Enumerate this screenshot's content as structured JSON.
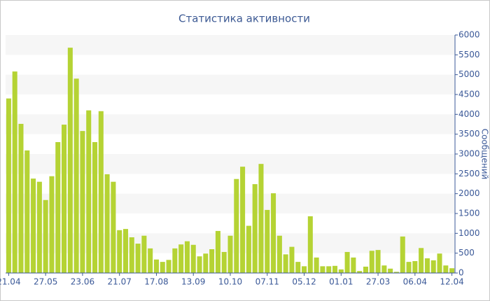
{
  "chart_data": {
    "type": "bar",
    "title": "Статистика активности",
    "y_label": "Сообщений",
    "categories": [
      "21.04",
      null,
      null,
      null,
      null,
      null,
      "27.05",
      null,
      null,
      null,
      null,
      null,
      "23.06",
      null,
      null,
      null,
      null,
      null,
      "21.07",
      null,
      null,
      null,
      null,
      null,
      "17.08",
      null,
      null,
      null,
      null,
      null,
      "13.09",
      null,
      null,
      null,
      null,
      null,
      "10.10",
      null,
      null,
      null,
      null,
      null,
      "07.11",
      null,
      null,
      null,
      null,
      null,
      "05.12",
      null,
      null,
      null,
      null,
      null,
      "01.01",
      null,
      null,
      null,
      null,
      null,
      "27.03",
      null,
      null,
      null,
      null,
      null,
      "06.04",
      null,
      null,
      null,
      null,
      null,
      "12.04"
    ],
    "values": [
      4400,
      5080,
      3760,
      3090,
      2380,
      2300,
      1840,
      2440,
      3300,
      3740,
      5680,
      4900,
      3580,
      4100,
      3300,
      4080,
      2490,
      2300,
      1080,
      1110,
      900,
      740,
      940,
      620,
      340,
      280,
      330,
      620,
      720,
      800,
      710,
      420,
      490,
      600,
      1060,
      530,
      940,
      2370,
      2680,
      1190,
      2240,
      2750,
      1590,
      2010,
      940,
      470,
      660,
      280,
      170,
      1430,
      390,
      170,
      170,
      180,
      90,
      530,
      390,
      50,
      160,
      560,
      580,
      190,
      110,
      30,
      920,
      280,
      300,
      630,
      370,
      320,
      490,
      190,
      120
    ],
    "color": "#b5d334",
    "ylim": [
      0,
      6000
    ],
    "yticks": [
      0,
      500,
      1000,
      1500,
      2000,
      2500,
      3000,
      3500,
      4000,
      4500,
      5000,
      5500,
      6000
    ],
    "grid": true
  }
}
